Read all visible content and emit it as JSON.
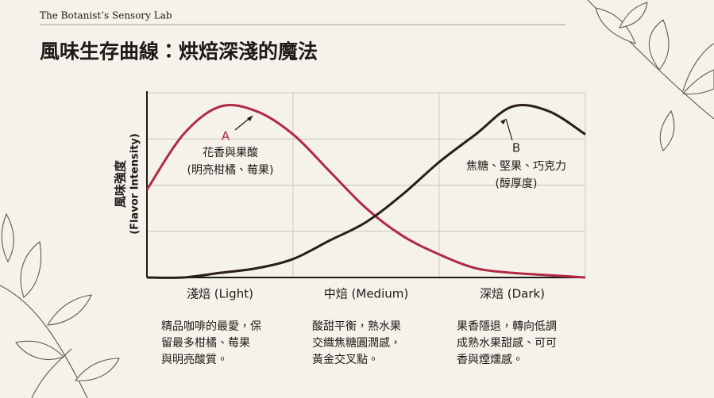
{
  "header": "The Botanist’s Sensory Lab",
  "chart_data": {
    "type": "line",
    "title": "風味生存曲線：烘焙深淺的魔法",
    "ylabel": [
      "風味強度",
      "(Flavor Intensity)"
    ],
    "x": [
      0,
      0.25,
      0.5,
      0.75,
      1,
      1.25,
      1.5,
      1.75,
      2,
      2.25,
      2.5,
      2.75,
      3
    ],
    "xlim": [
      0,
      3
    ],
    "xticks": [
      1,
      2,
      3
    ],
    "ylim": [
      0,
      4
    ],
    "yticks": [
      1,
      2,
      3,
      4
    ],
    "grid": true,
    "categories": [
      "淺焙 (Light)",
      "中焙 (Medium)",
      "深焙 (Dark)"
    ],
    "series": [
      {
        "name": "A",
        "color": "#b02a43",
        "values": [
          1.9,
          3.1,
          3.7,
          3.6,
          3.1,
          2.3,
          1.5,
          0.9,
          0.5,
          0.2,
          0.1,
          0.05,
          0
        ]
      },
      {
        "name": "B",
        "color": "#2b1d18",
        "values": [
          0,
          0,
          0.1,
          0.2,
          0.4,
          0.8,
          1.2,
          1.8,
          2.5,
          3.1,
          3.7,
          3.6,
          3.1
        ]
      }
    ],
    "annotations": [
      {
        "text": [
          "花香與果酸",
          "(明亮柑橘、莓果)"
        ]
      },
      {
        "text": [
          "焦糖、堅果、巧克力",
          "(醇厚度)"
        ]
      }
    ],
    "notes": [
      [
        "精品咖啡的最愛，保",
        "留最多柑橘、莓果",
        "與明亮酸質。"
      ],
      [
        "酸甜平衡，熟水果",
        "交織焦糖圓潤感，",
        "黃金交叉點。"
      ],
      [
        "果香隱退，轉向低調",
        "成熟水果甜感、可可",
        "香與煙燻感。"
      ]
    ]
  }
}
